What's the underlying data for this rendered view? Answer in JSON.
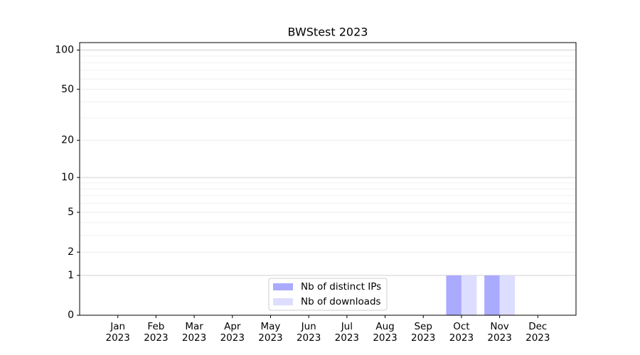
{
  "chart_data": {
    "type": "bar",
    "title": "BWStest 2023",
    "categories": [
      "Jan\n2023",
      "Feb\n2023",
      "Mar\n2023",
      "Apr\n2023",
      "May\n2023",
      "Jun\n2023",
      "Jul\n2023",
      "Aug\n2023",
      "Sep\n2023",
      "Oct\n2023",
      "Nov\n2023",
      "Dec\n2023"
    ],
    "series": [
      {
        "name": "Nb of distinct IPs",
        "color": "#aaaaff",
        "values": [
          0,
          0,
          0,
          0,
          0,
          0,
          0,
          0,
          0,
          1,
          1,
          0
        ]
      },
      {
        "name": "Nb of downloads",
        "color": "#ddddff",
        "values": [
          0,
          0,
          0,
          0,
          0,
          0,
          0,
          0,
          0,
          1,
          1,
          0
        ]
      }
    ],
    "yscale": "log1p",
    "ylim": [
      0,
      114
    ],
    "yticks": [
      0,
      1,
      2,
      5,
      10,
      20,
      50,
      100
    ],
    "yminorticks": [
      3,
      4,
      6,
      7,
      8,
      9,
      30,
      40,
      60,
      70,
      80,
      90
    ],
    "grid": true,
    "legend": "lower center"
  }
}
